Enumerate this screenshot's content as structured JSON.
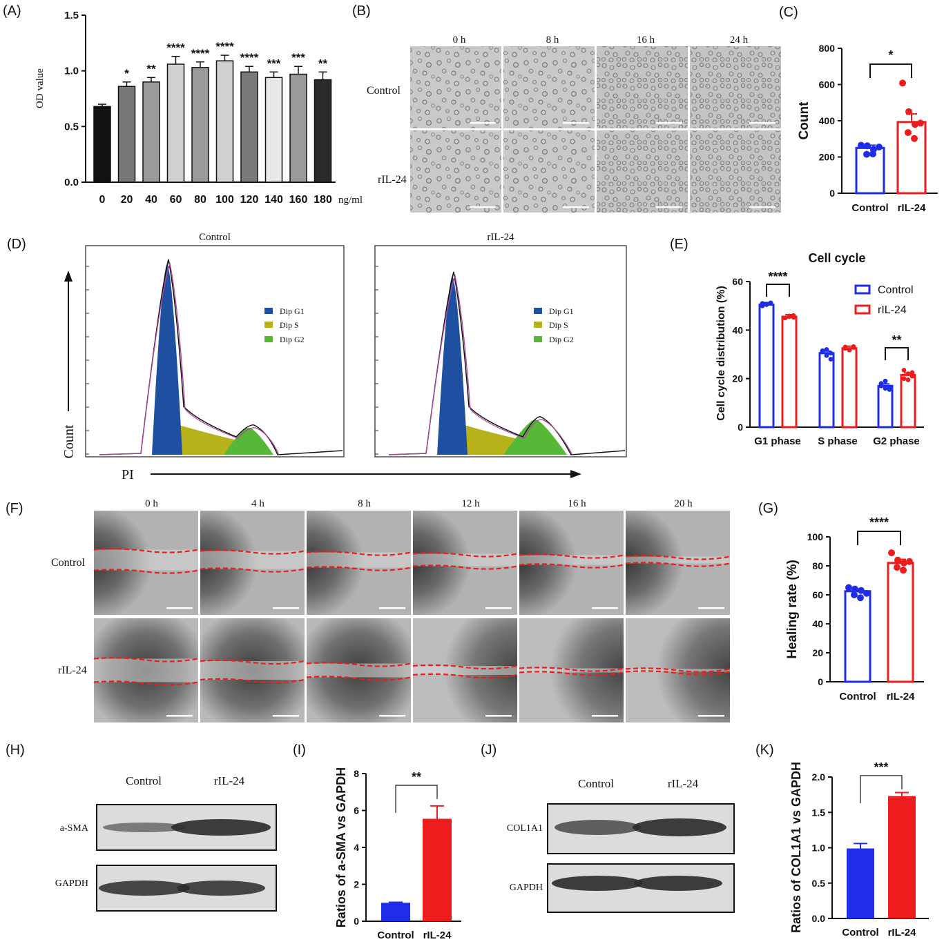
{
  "panel_labels": [
    "(A)",
    "(B)",
    "(C)",
    "(D)",
    "(E)",
    "(F)",
    "(G)",
    "(H)",
    "(I)",
    "(J)",
    "(K)"
  ],
  "colors": {
    "control": "#1f2de8",
    "ril24": "#ee1c1c",
    "dipG1": "#1e4fa0",
    "dipS": "#b7b21c",
    "dipG2": "#57b837",
    "scratch": "#e8201c"
  },
  "A": {
    "ylabel": "OD value",
    "yticks": [
      "0.0",
      "0.5",
      "1.0",
      "1.5"
    ],
    "categories": [
      "0",
      "20",
      "40",
      "60",
      "80",
      "100",
      "120",
      "140",
      "160",
      "180"
    ],
    "unit": "ng/ml",
    "values": [
      0.68,
      0.86,
      0.9,
      1.06,
      1.03,
      1.09,
      0.99,
      0.94,
      0.97,
      0.92
    ],
    "errors": [
      0.02,
      0.04,
      0.04,
      0.07,
      0.05,
      0.05,
      0.05,
      0.05,
      0.07,
      0.07
    ],
    "stars": [
      "",
      "*",
      "**",
      "****",
      "****",
      "****",
      "****",
      "***",
      "***",
      "**"
    ],
    "ylim": [
      0,
      1.5
    ]
  },
  "B": {
    "times": [
      "0 h",
      "8 h",
      "16 h",
      "24 h"
    ],
    "rows": [
      "Control",
      "rIL-24"
    ],
    "scale": "200 μm"
  },
  "C": {
    "ylabel": "Count",
    "yticks": [
      "0",
      "200",
      "400",
      "600",
      "800"
    ],
    "ylim": [
      0,
      800
    ],
    "categories": [
      "Control",
      "rIL-24"
    ],
    "means": [
      250,
      393
    ],
    "sem": [
      15,
      45
    ],
    "points": [
      [
        265,
        262,
        242,
        215,
        217,
        255
      ],
      [
        608,
        450,
        380,
        335,
        302,
        387
      ]
    ],
    "sig": "*"
  },
  "D": {
    "titles": [
      "Control",
      "rIL-24"
    ],
    "ylabel": "Count",
    "xlabel": "PI",
    "legend": [
      "Dip G1",
      "Dip S",
      "Dip G2"
    ]
  },
  "E": {
    "title": "Cell cycle",
    "ylabel": "Cell cycle distribution (%)",
    "yticks": [
      "0",
      "20",
      "40",
      "60"
    ],
    "ylim": [
      0,
      60
    ],
    "categories": [
      "G1 phase",
      "S phase",
      "G2 phase"
    ],
    "legend": [
      "Control",
      "rIL-24"
    ],
    "control_means": [
      50.5,
      30.5,
      17
    ],
    "ril24_means": [
      45.5,
      32.5,
      21.5
    ],
    "control_points": [
      [
        51,
        50.5,
        51,
        50,
        50.5,
        51.2
      ],
      [
        31.5,
        29.5,
        28,
        31,
        32,
        30.5
      ],
      [
        18,
        16,
        15.5,
        17,
        19,
        16.5
      ]
    ],
    "ril24_points": [
      [
        45,
        45.5,
        46,
        45,
        45.8,
        45.3
      ],
      [
        33,
        32,
        33.2,
        32.5,
        31.8,
        32.8
      ],
      [
        23.5,
        22,
        21,
        20,
        19.5,
        22.5
      ]
    ],
    "sigs": [
      "****",
      "",
      "**"
    ]
  },
  "F": {
    "times": [
      "0 h",
      "4 h",
      "8 h",
      "12 h",
      "16 h",
      "20 h"
    ],
    "rows": [
      "Control",
      "rIL-24"
    ],
    "scale": "1000 μm"
  },
  "G": {
    "ylabel": "Healing rate (%)",
    "yticks": [
      "0",
      "20",
      "40",
      "60",
      "80",
      "100"
    ],
    "ylim": [
      0,
      100
    ],
    "categories": [
      "Control",
      "rIL-24"
    ],
    "means": [
      62.5,
      82
    ],
    "sem": [
      1.5,
      2.5
    ],
    "points": [
      [
        65,
        64,
        63,
        60,
        58,
        61
      ],
      [
        89,
        84,
        82,
        79,
        77,
        83
      ]
    ],
    "sig": "****"
  },
  "H": {
    "lanes": [
      "Control",
      "rIL-24"
    ],
    "bands": [
      "a-SMA",
      "GAPDH"
    ]
  },
  "I": {
    "ylabel": "Ratios of a-SMA vs GAPDH",
    "yticks": [
      "0",
      "2",
      "4",
      "6",
      "8"
    ],
    "ylim": [
      0,
      8
    ],
    "categories": [
      "Control",
      "rIL-24"
    ],
    "values": [
      1.0,
      5.55
    ],
    "errors": [
      0.03,
      0.7
    ],
    "sig": "**"
  },
  "J": {
    "lanes": [
      "Control",
      "rIL-24"
    ],
    "bands": [
      "COL1A1",
      "GAPDH"
    ]
  },
  "K": {
    "ylabel": "Ratios of COL1A1 vs GAPDH",
    "yticks": [
      "0.0",
      "0.5",
      "1.0",
      "1.5",
      "2.0"
    ],
    "ylim": [
      0,
      2
    ],
    "categories": [
      "Control",
      "rIL-24"
    ],
    "values": [
      0.99,
      1.73
    ],
    "errors": [
      0.07,
      0.05
    ],
    "sig": "***"
  }
}
